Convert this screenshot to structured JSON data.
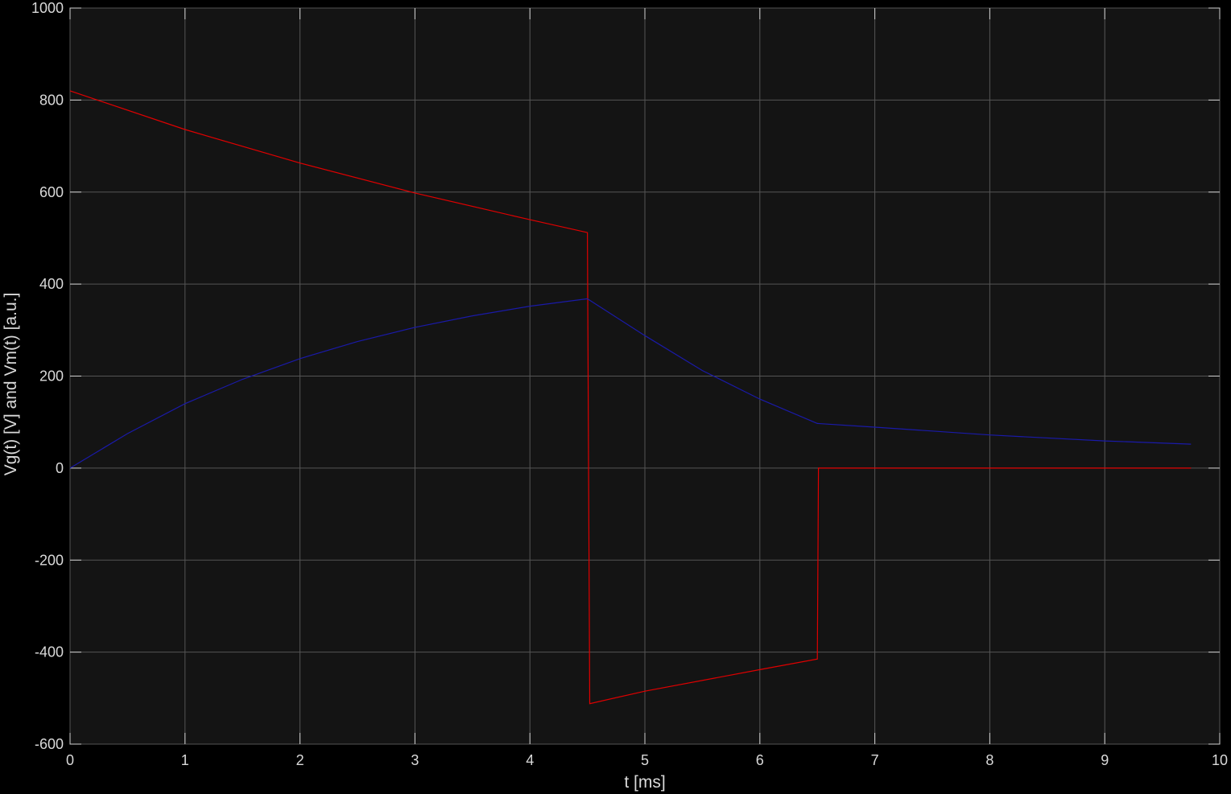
{
  "chart_data": {
    "type": "line",
    "title": "",
    "xlabel": "t [ms]",
    "ylabel": "Vg(t) [V] and Vm(t) [a.u.]",
    "xlim": [
      0,
      10
    ],
    "ylim": [
      -600,
      1000
    ],
    "x_ticks": [
      0,
      1,
      2,
      3,
      4,
      5,
      6,
      7,
      8,
      9,
      10
    ],
    "y_ticks": [
      -600,
      -400,
      -200,
      0,
      200,
      400,
      600,
      800,
      1000
    ],
    "grid": true,
    "background_color": "#141414",
    "series": [
      {
        "color": "#e00000",
        "x": [
          0,
          1,
          2,
          3,
          4,
          4.5,
          4.5,
          4.52,
          5,
          6,
          6.5,
          6.51,
          7,
          8,
          9,
          9.75
        ],
        "y": [
          820,
          736,
          663,
          598,
          540,
          512,
          512,
          -512,
          -485,
          -438,
          -415,
          0,
          0,
          0,
          0,
          0
        ]
      },
      {
        "color": "#1a1aa8",
        "x": [
          0,
          0.5,
          1,
          1.5,
          2,
          2.5,
          3,
          3.5,
          4,
          4.5,
          5,
          5.5,
          6,
          6.5,
          7,
          8,
          9,
          9.75
        ],
        "y": [
          0,
          75,
          140,
          193,
          238,
          275,
          306,
          331,
          352,
          368,
          288,
          212,
          150,
          97,
          89,
          72,
          59,
          52
        ]
      }
    ]
  }
}
